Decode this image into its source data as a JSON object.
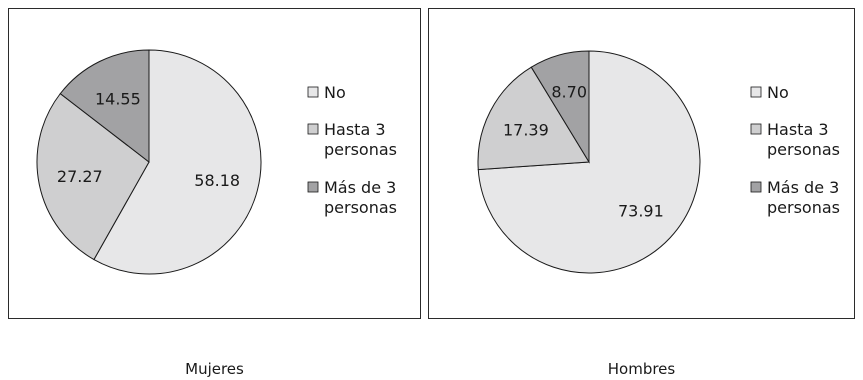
{
  "chart_data": [
    {
      "type": "pie",
      "title": "",
      "caption": "Mujeres",
      "categories": [
        "No",
        "Hasta 3 personas",
        "Más de 3 personas"
      ],
      "legend": [
        {
          "lines": [
            "No"
          ]
        },
        {
          "lines": [
            "Hasta 3",
            "personas"
          ]
        },
        {
          "lines": [
            "Más de 3",
            "personas"
          ]
        }
      ],
      "values": [
        58.18,
        27.27,
        14.55
      ],
      "value_labels": [
        "58.18",
        "27.27",
        "14.55"
      ],
      "colors": [
        "#e7e7e8",
        "#cfcfd0",
        "#a2a2a4"
      ],
      "legend_placement": "right"
    },
    {
      "type": "pie",
      "title": "",
      "caption": "Hombres",
      "categories": [
        "No",
        "Hasta 3 personas",
        "Más de 3 personas"
      ],
      "legend": [
        {
          "lines": [
            "No"
          ]
        },
        {
          "lines": [
            "Hasta 3",
            "personas"
          ]
        },
        {
          "lines": [
            "Más de 3",
            "personas"
          ]
        }
      ],
      "values": [
        73.91,
        17.39,
        8.7
      ],
      "value_labels": [
        "73.91",
        "17.39",
        "8.70"
      ],
      "colors": [
        "#e7e7e8",
        "#cfcfd0",
        "#a2a2a4"
      ],
      "legend_placement": "right"
    }
  ]
}
